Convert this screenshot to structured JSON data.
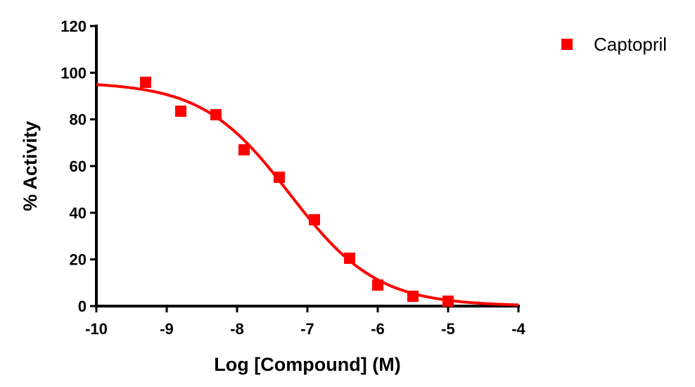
{
  "chart_data": {
    "type": "scatter",
    "title": "",
    "xlabel": "Log [Compound] (M)",
    "ylabel": "% Activity",
    "xlim": [
      -10,
      -4
    ],
    "ylim": [
      0,
      120
    ],
    "xticks": [
      -10,
      -9,
      -8,
      -7,
      -6,
      -5,
      -4
    ],
    "yticks": [
      0,
      20,
      40,
      60,
      80,
      100,
      120
    ],
    "grid": false,
    "legend_position": "top-right",
    "series": [
      {
        "name": "Captopril",
        "color": "#ff0000",
        "marker": "square",
        "x": [
          -9.3,
          -8.8,
          -8.3,
          -7.9,
          -7.4,
          -6.9,
          -6.4,
          -6.0,
          -5.5,
          -5.0
        ],
        "y": [
          95.9,
          83.5,
          82.0,
          67.0,
          55.2,
          37.0,
          20.5,
          9.0,
          4.2,
          2.1
        ],
        "fit": {
          "model": "sigmoidal dose-response",
          "top": 96,
          "bottom": 0,
          "logIC50": -7.25,
          "hill_slope": -0.7
        }
      }
    ]
  }
}
